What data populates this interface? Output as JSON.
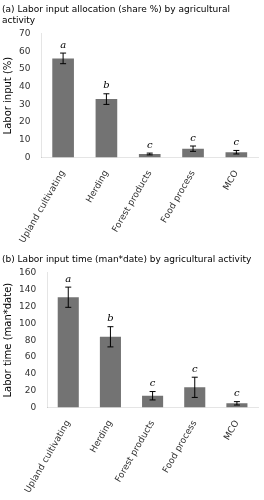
{
  "chart_data": [
    {
      "type": "bar",
      "title": "(a) Labor input allocation (share %) by agricultural activity",
      "categories": [
        "Upland cultivating",
        "Herding",
        "Forest products",
        "Food process",
        "MCO"
      ],
      "values": [
        56,
        33,
        2,
        5,
        3
      ],
      "errors": [
        3,
        3,
        0.5,
        1.5,
        1
      ],
      "annotations": [
        "a",
        "b",
        "c",
        "c",
        "c"
      ],
      "ylabel": "Labor input (%)",
      "ylim": [
        0,
        70
      ],
      "yticks": [
        0,
        10,
        20,
        30,
        40,
        50,
        60,
        70
      ],
      "color": "#737373",
      "grid": false
    },
    {
      "type": "bar",
      "title": "(b) Labor input time (man*date) by agricultural activity",
      "categories": [
        "Upland cultivating",
        "Herding",
        "Forest products",
        "Food process",
        "MCO"
      ],
      "values": [
        131,
        84,
        14,
        24,
        5
      ],
      "errors": [
        12,
        12,
        5,
        12,
        2
      ],
      "annotations": [
        "a",
        "b",
        "c",
        "c",
        "c"
      ],
      "ylabel": "Labor time (man*date)",
      "ylim": [
        0,
        160
      ],
      "yticks": [
        0,
        20,
        40,
        60,
        80,
        100,
        120,
        140,
        160
      ],
      "color": "#737373",
      "grid": false
    }
  ]
}
